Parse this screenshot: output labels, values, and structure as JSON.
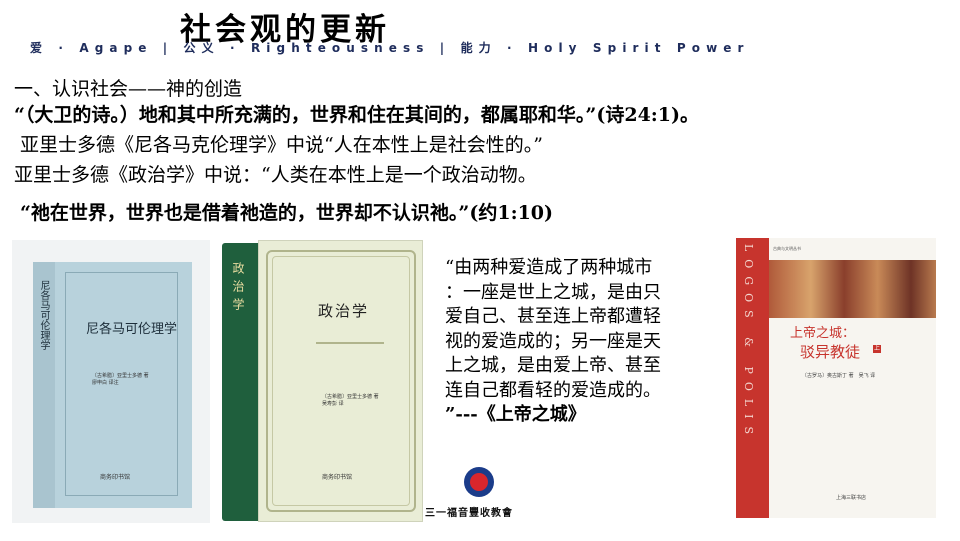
{
  "header": {
    "title": "社会观的更新",
    "motto": "爱 · Agape  |  公义 · Righteousness  |  能力 · Holy Spirit Power"
  },
  "body": {
    "line1": "一、认识社会——神的创造",
    "line2": "“（大卫的诗。）地和其中所充满的，世界和住在其间的，都属耶和华。”(诗24:1)。",
    "line3": "亚里士多德《尼各马克伦理学》中说“人在本性上是社会性的。”",
    "line4": "亚里士多德《政治学》中说：“人类在本性上是一个政治动物。",
    "line5": "“祂在世界，世界也是借着祂造的，世界却不认识祂。”(约1:10)"
  },
  "quote": {
    "lines": [
      "“由两种爱造成了两种城市",
      "：一座是世上之城，是由只",
      "爱自己、甚至连上帝都遭轻",
      "视的爱造成的；另一座是天",
      "上之城，是由爱上帝、甚至",
      "连自己都看轻的爱造成的。",
      "”---《上帝之城》"
    ]
  },
  "books": {
    "book1": {
      "title": "尼各马可伦理学",
      "spine": "尼各马可伦理学",
      "author": "〔古希腊〕亚里士多德 著",
      "translator": "廖申白 译注",
      "publisher": "商务印书馆"
    },
    "book2": {
      "title": "政治学",
      "spine": "政治学",
      "author": "〔古希腊〕亚里士多德 著",
      "translator": "吴寿彭 译",
      "publisher": "商务印书馆"
    },
    "book3": {
      "spine": "LOGOS & POLIS",
      "series": "古典与文明丛书",
      "title_line1": "上帝之城：",
      "title_line2": "驳异教徒",
      "badge": "上",
      "author": "〔古罗马〕奥古斯丁 著　吴飞 译",
      "publisher": "上海三联书店"
    }
  },
  "footer": {
    "church": "三一福音豐收教會"
  },
  "colors": {
    "motto": "#1f2d5c",
    "book2_spine": "#1f5f3d",
    "book3_red": "#c7342d",
    "logo_blue": "#1b3c8a"
  }
}
